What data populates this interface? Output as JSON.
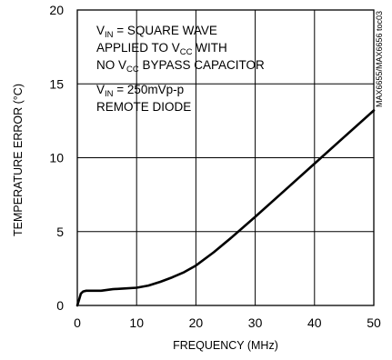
{
  "chart_data": {
    "type": "line",
    "xlabel": "FREQUENCY (MHz)",
    "ylabel": "TEMPERATURE ERROR (°C)",
    "xlim": [
      0,
      50
    ],
    "ylim": [
      0,
      20
    ],
    "x_ticks": [
      "0",
      "10",
      "20",
      "30",
      "40",
      "50"
    ],
    "y_ticks": [
      "0",
      "5",
      "10",
      "15",
      "20"
    ],
    "grid": true,
    "legend": "none",
    "series": [
      {
        "x": [
          0,
          0.3,
          0.6,
          1,
          1.5,
          2,
          3,
          4,
          5,
          6,
          8,
          10,
          12,
          14,
          16,
          18,
          20,
          23,
          26,
          30,
          35,
          40,
          45,
          50
        ],
        "y": [
          0,
          0.4,
          0.8,
          0.95,
          1.0,
          1.0,
          1.0,
          1.0,
          1.05,
          1.1,
          1.15,
          1.2,
          1.35,
          1.6,
          1.9,
          2.25,
          2.7,
          3.6,
          4.6,
          6.0,
          7.8,
          9.6,
          11.4,
          13.2
        ],
        "color": "#000000"
      }
    ],
    "annotations": {
      "line1": {
        "pre": "V",
        "sub": "IN",
        "post": " = SQUARE WAVE"
      },
      "line2": {
        "pre": "APPLIED TO V",
        "sub": "CC",
        "post": " WITH"
      },
      "line3": {
        "pre": "NO V",
        "sub": "CC",
        "post": " BYPASS CAPACITOR"
      },
      "line4": {
        "pre": "V",
        "sub": "IN",
        "post": " = 250mVp-p"
      },
      "line5": "REMOTE DIODE"
    },
    "side_label": "MAX6655/MAX6656 toc03"
  }
}
